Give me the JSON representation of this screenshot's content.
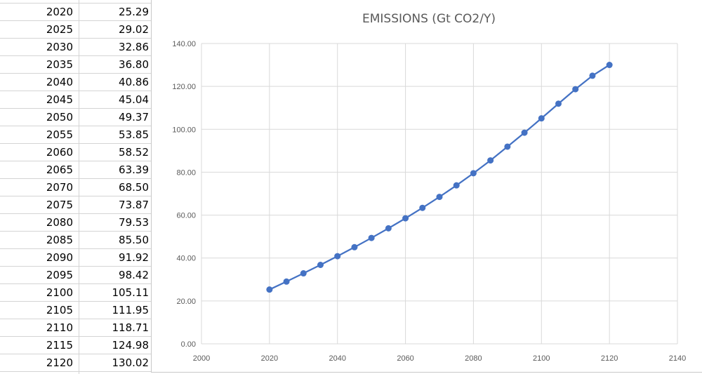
{
  "table": {
    "rows": [
      {
        "year": "2020",
        "value": "25.29"
      },
      {
        "year": "2025",
        "value": "29.02"
      },
      {
        "year": "2030",
        "value": "32.86"
      },
      {
        "year": "2035",
        "value": "36.80"
      },
      {
        "year": "2040",
        "value": "40.86"
      },
      {
        "year": "2045",
        "value": "45.04"
      },
      {
        "year": "2050",
        "value": "49.37"
      },
      {
        "year": "2055",
        "value": "53.85"
      },
      {
        "year": "2060",
        "value": "58.52"
      },
      {
        "year": "2065",
        "value": "63.39"
      },
      {
        "year": "2070",
        "value": "68.50"
      },
      {
        "year": "2075",
        "value": "73.87"
      },
      {
        "year": "2080",
        "value": "79.53"
      },
      {
        "year": "2085",
        "value": "85.50"
      },
      {
        "year": "2090",
        "value": "91.92"
      },
      {
        "year": "2095",
        "value": "98.42"
      },
      {
        "year": "2100",
        "value": "105.11"
      },
      {
        "year": "2105",
        "value": "111.95"
      },
      {
        "year": "2110",
        "value": "118.71"
      },
      {
        "year": "2115",
        "value": "124.98"
      },
      {
        "year": "2120",
        "value": "130.02"
      }
    ]
  },
  "chart_data": {
    "type": "scatter",
    "title": "EMISSIONS (Gt CO2/Y)",
    "xlabel": "",
    "ylabel": "",
    "xlim": [
      2000,
      2140
    ],
    "ylim": [
      0,
      140
    ],
    "x_ticks": [
      "2000",
      "2020",
      "2040",
      "2060",
      "2080",
      "2100",
      "2120",
      "2140"
    ],
    "y_ticks": [
      "0.00",
      "20.00",
      "40.00",
      "60.00",
      "80.00",
      "100.00",
      "120.00",
      "140.00"
    ],
    "grid": true,
    "legend": "none",
    "series": [
      {
        "color": "#4472c4",
        "x": [
          2020,
          2025,
          2030,
          2035,
          2040,
          2045,
          2050,
          2055,
          2060,
          2065,
          2070,
          2075,
          2080,
          2085,
          2090,
          2095,
          2100,
          2105,
          2110,
          2115,
          2120
        ],
        "y": [
          25.29,
          29.02,
          32.86,
          36.8,
          40.86,
          45.04,
          49.37,
          53.85,
          58.52,
          63.39,
          68.5,
          73.87,
          79.53,
          85.5,
          91.92,
          98.42,
          105.11,
          111.95,
          118.71,
          124.98,
          130.02
        ]
      }
    ]
  }
}
